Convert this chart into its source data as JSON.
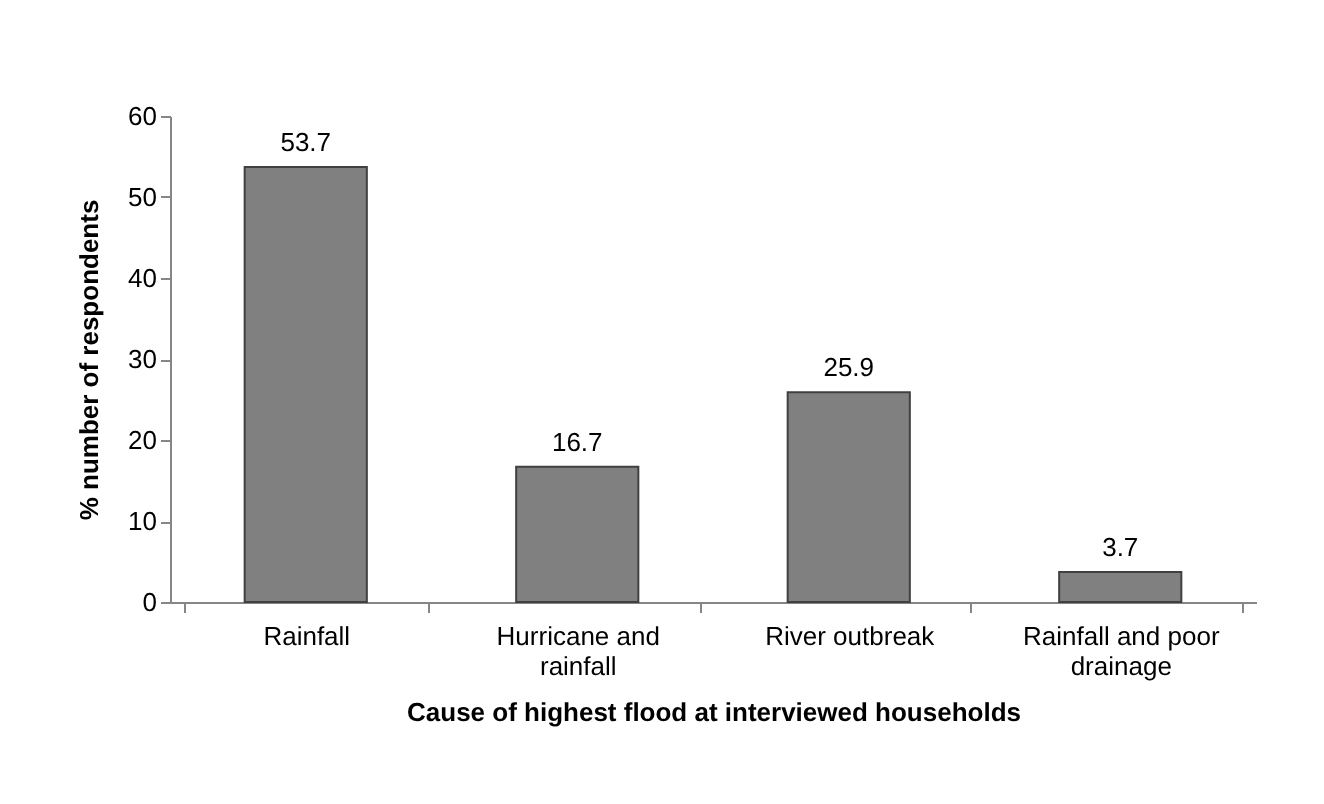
{
  "chart_data": {
    "type": "bar",
    "xlabel": "Cause of highest flood at interviewed households",
    "ylabel": "% number of respondents",
    "categories": [
      "Rainfall",
      "Hurricane and rainfall",
      "River outbreak",
      "Rainfall and poor drainage"
    ],
    "values": [
      53.7,
      16.7,
      25.9,
      3.7
    ],
    "color": "#808080",
    "data_labels": true,
    "ylim": [
      0,
      60
    ],
    "yticks": [
      0,
      10,
      20,
      30,
      40,
      50,
      60
    ]
  }
}
